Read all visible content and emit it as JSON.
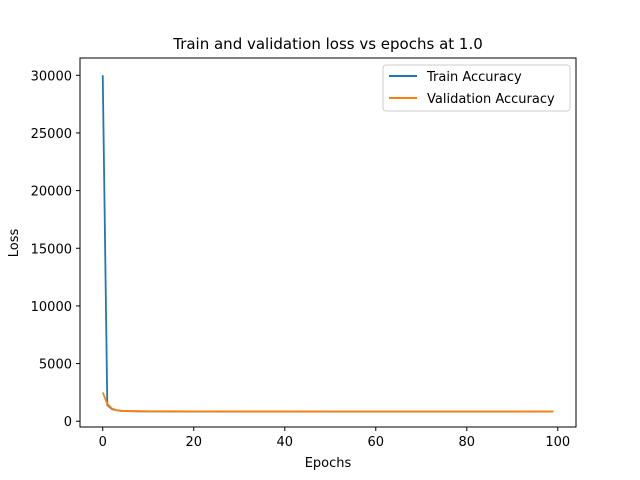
{
  "chart_data": {
    "type": "line",
    "title": "Train and validation loss vs epochs at 1.0",
    "xlabel": "Epochs",
    "ylabel": "Loss",
    "xlim": [
      -5,
      104
    ],
    "ylim": [
      -500,
      31500
    ],
    "xticks": [
      0,
      20,
      40,
      60,
      80,
      100
    ],
    "yticks": [
      0,
      5000,
      10000,
      15000,
      20000,
      25000,
      30000
    ],
    "grid": false,
    "legend_position": "top-right",
    "series": [
      {
        "name": "Train Accuracy",
        "color": "#1f77b4",
        "x": [
          0,
          1,
          2,
          3,
          4,
          5,
          6,
          8,
          10,
          15,
          20,
          30,
          40,
          50,
          60,
          70,
          80,
          90,
          99
        ],
        "values": [
          30000,
          1400,
          1050,
          950,
          900,
          880,
          870,
          860,
          855,
          850,
          845,
          840,
          838,
          836,
          835,
          834,
          833,
          832,
          830
        ]
      },
      {
        "name": "Validation Accuracy",
        "color": "#ff7f0e",
        "x": [
          0,
          1,
          2,
          3,
          4,
          5,
          6,
          8,
          10,
          15,
          20,
          30,
          40,
          50,
          60,
          70,
          80,
          90,
          99
        ],
        "values": [
          2500,
          1500,
          1100,
          960,
          910,
          890,
          880,
          870,
          865,
          860,
          855,
          850,
          848,
          846,
          845,
          844,
          843,
          842,
          840
        ]
      }
    ]
  }
}
